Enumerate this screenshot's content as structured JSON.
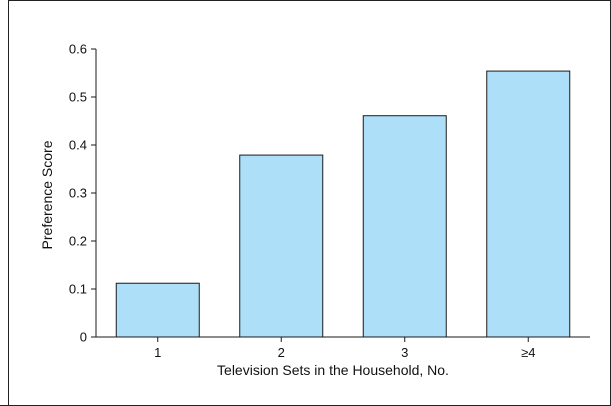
{
  "chart_data": {
    "type": "bar",
    "title": "",
    "xlabel": "Television Sets in the Household, No.",
    "ylabel": "Preference Score",
    "categories": [
      "1",
      "2",
      "3",
      "≥4"
    ],
    "values": [
      0.112,
      0.379,
      0.461,
      0.554
    ],
    "ylim": [
      0,
      0.6
    ],
    "yticks": [
      0,
      0.1,
      0.2,
      0.3,
      0.4,
      0.5,
      0.6
    ],
    "ytick_labels": [
      "0",
      "0.1",
      "0.2",
      "0.3",
      "0.4",
      "0.5",
      "0.6"
    ],
    "grid": false,
    "legend": "none",
    "colors": {
      "bar_fill": "#addff9",
      "bar_stroke": "#1a1a1a",
      "axis": "#1a1a1a"
    }
  }
}
